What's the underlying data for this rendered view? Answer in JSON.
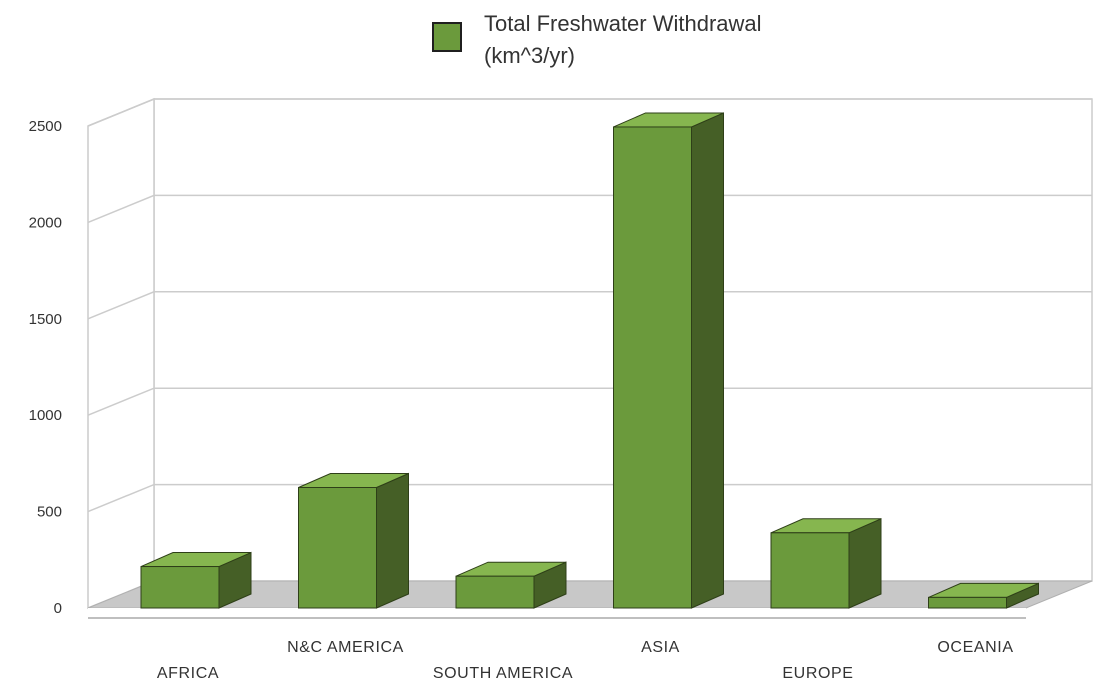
{
  "chart_data": {
    "type": "bar",
    "categories": [
      "AFRICA",
      "N&C AMERICA",
      "SOUTH AMERICA",
      "ASIA",
      "EUROPE",
      "OCEANIA"
    ],
    "series": [
      {
        "name": "Total Freshwater Withdrawal (km^3/yr)",
        "values": [
          215,
          625,
          165,
          2495,
          390,
          55
        ]
      }
    ],
    "yticks": [
      "0",
      "500",
      "1000",
      "1500",
      "2000",
      "2500"
    ],
    "ylim": [
      0,
      2500
    ],
    "grid": true,
    "legend_position": "top-center",
    "style": "3d"
  },
  "colors": {
    "bar_front": "#6b9a3c",
    "bar_top": "#86b64f",
    "bar_side": "#455f26",
    "legend_swatch": "#6b9a3c",
    "floor": "#c8c8c8",
    "grid": "#cccccc"
  }
}
